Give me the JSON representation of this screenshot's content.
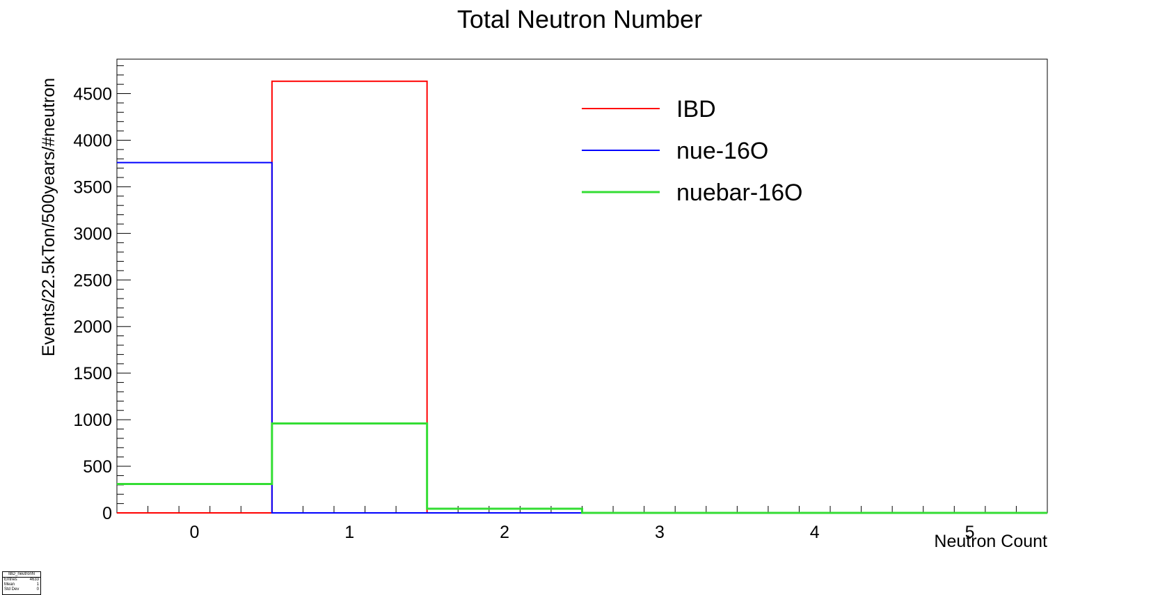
{
  "chart_data": {
    "type": "step-histogram",
    "title": "Total Neutron Number",
    "xlabel": "Neutron Count",
    "ylabel": "Events/22.5kTon/500years/#neutron",
    "xlim": [
      -0.5,
      5.5
    ],
    "ylim": [
      0,
      4870
    ],
    "x_ticks": [
      0,
      1,
      2,
      3,
      4,
      5
    ],
    "y_ticks": [
      0,
      500,
      1000,
      1500,
      2000,
      2500,
      3000,
      3500,
      4000,
      4500
    ],
    "bin_edges": [
      -0.5,
      0.5,
      1.5,
      2.5,
      3.5,
      4.5,
      5.5
    ],
    "series": [
      {
        "name": "IBD",
        "color": "#ff0000",
        "values": [
          0,
          4633,
          0,
          0,
          0,
          0
        ]
      },
      {
        "name": "nue-16O",
        "color": "#0000ff",
        "values": [
          3760,
          0,
          0,
          0,
          0,
          0
        ]
      },
      {
        "name": "nuebar-16O",
        "color": "#33dd33",
        "values": [
          310,
          960,
          45,
          0,
          0,
          0
        ]
      }
    ],
    "legend_position": "top-right",
    "grid": false
  },
  "stats_box": {
    "title": "IBD_neutronN",
    "rows": [
      {
        "label": "Entries",
        "value": "4633"
      },
      {
        "label": "Mean",
        "value": "1"
      },
      {
        "label": "Std Dev",
        "value": "0"
      }
    ]
  }
}
